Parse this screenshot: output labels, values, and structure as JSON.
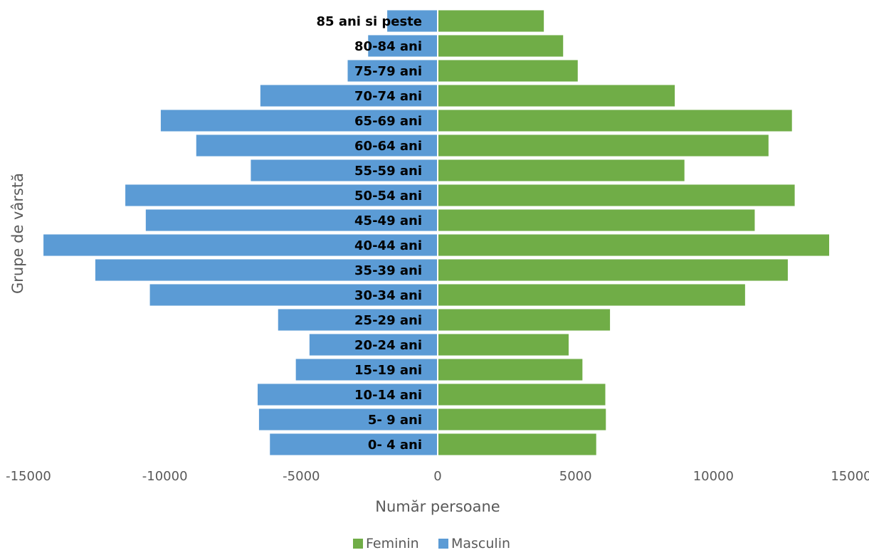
{
  "chart_data": {
    "type": "bar",
    "orientation": "horizontal",
    "title": "",
    "xlabel": "Număr persoane",
    "ylabel": "Grupe de vârstă",
    "xlim": [
      -15000,
      15000
    ],
    "xticks": [
      "-15000",
      "-10000",
      "-5000",
      "0",
      "5000",
      "10000",
      "15000"
    ],
    "grid": false,
    "legend_position": "bottom",
    "categories": [
      "0- 4 ani",
      "5- 9 ani",
      "10-14 ani",
      "15-19 ani",
      "20-24 ani",
      "25-29 ani",
      "30-34 ani",
      "35-39 ani",
      "40-44 ani",
      "45-49 ani",
      "50-54 ani",
      "55-59 ani",
      "60-64 ani",
      "65-69 ani",
      "70-74 ani",
      "75-79 ani",
      "80-84 ani",
      "85 ani si peste"
    ],
    "series": [
      {
        "name": "Feminin",
        "color": "#70ad47",
        "values": [
          5750,
          6100,
          6080,
          5250,
          4750,
          6250,
          11150,
          12700,
          14200,
          11500,
          12950,
          8950,
          12000,
          12850,
          8600,
          5080,
          4550,
          3850
        ]
      },
      {
        "name": "Masculin",
        "color": "#5b9bd5",
        "values": [
          -6150,
          -6550,
          -6600,
          -5200,
          -4700,
          -5850,
          -10550,
          -12550,
          -14450,
          -10700,
          -11450,
          -6850,
          -8850,
          -10150,
          -6500,
          -3300,
          -2550,
          -1850
        ]
      }
    ]
  }
}
